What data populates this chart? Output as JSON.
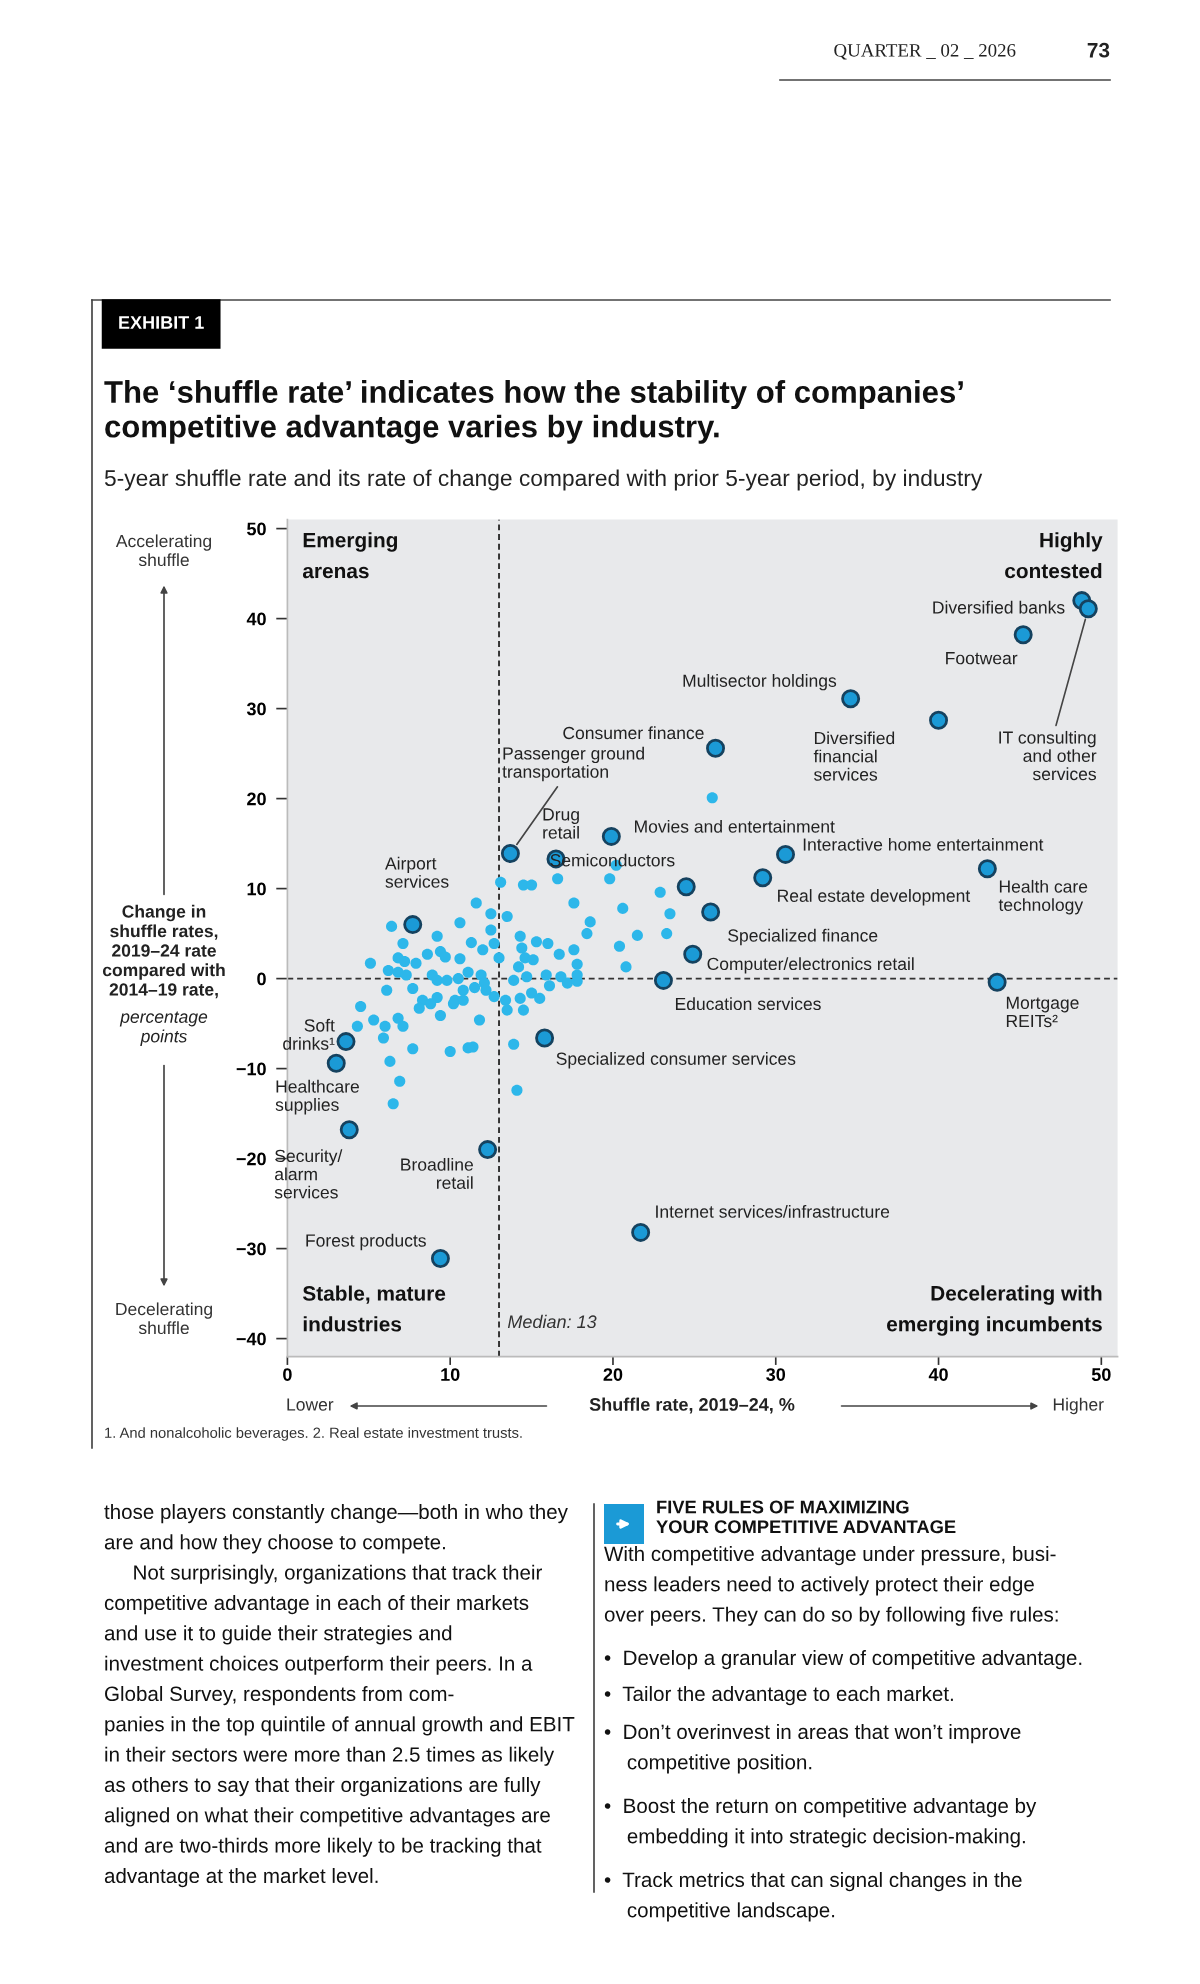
{
  "chart_data": {
    "type": "scatter",
    "title": "The ‘shuffle rate’ indicates how the stability of companies’\ncompetitive advantage varies by industry.",
    "subtitle": "5-year shuffle rate and its rate of change compared with prior 5-year period, by industry",
    "xlabel": "Shuffle rate, 2019–24, %",
    "ylabel": "Change in\nshuffle rates,\n2019–24 rate\ncompared with\n2014–19 rate,\npercentage\npoints",
    "xlim": [
      0,
      51
    ],
    "ylim": [
      -42,
      51
    ],
    "xticks": [
      0,
      10,
      20,
      30,
      40,
      50
    ],
    "yticks": [
      {
        "value": -40,
        "label": "−40"
      },
      {
        "value": -30,
        "label": "−30"
      },
      {
        "value": -20,
        "label": "−20"
      },
      {
        "value": -10,
        "label": "−10"
      },
      0,
      10,
      20,
      30,
      40,
      50
    ],
    "grid": false,
    "legend": false,
    "marker": "circle",
    "ref_lines": [
      {
        "axis": "x",
        "value": 13,
        "label": "Median: 13",
        "line_style": "dashed",
        "color": "#333333"
      },
      {
        "axis": "y",
        "value": 0,
        "line_style": "dashed",
        "color": "#333333"
      }
    ],
    "series": [
      {
        "color": "#1b9ad6",
        "x": [
          48.8,
          49.2,
          45.2,
          34.6,
          40.0,
          26.3,
          13.7,
          16.5,
          19.9,
          24.5,
          30.6,
          29.2,
          43.0,
          26.0,
          24.9,
          23.1,
          43.6,
          7.7,
          3.6,
          3.0,
          15.8,
          3.8,
          12.3,
          21.7,
          9.4
        ],
        "values": [
          42.0,
          41.1,
          38.2,
          31.1,
          28.7,
          25.6,
          13.9,
          13.3,
          15.8,
          10.2,
          13.8,
          11.2,
          12.2,
          7.4,
          2.7,
          -0.2,
          -0.4,
          6.0,
          -7.0,
          -9.4,
          -6.6,
          -16.8,
          -19.0,
          -28.2,
          -31.1
        ]
      },
      {
        "color": "#2db7ea",
        "x": [
          16.6,
          13.1,
          14.5,
          15.0,
          11.6,
          12.5,
          13.5,
          17.6,
          18.6,
          18.4,
          6.4,
          7.1,
          9.2,
          10.6,
          11.3,
          12.5,
          12.7,
          14.3,
          15.3,
          14.4,
          16.0,
          17.6,
          5.1,
          6.2,
          6.8,
          7.2,
          7.9,
          8.6,
          9.4,
          9.7,
          10.6,
          12.0,
          13.0,
          14.6,
          15.1,
          14.2,
          16.7,
          17.8,
          6.8,
          7.3,
          8.9,
          9.2,
          9.8,
          10.5,
          11.1,
          11.9,
          12.1,
          11.5,
          10.8,
          10.3,
          12.2,
          13.9,
          14.7,
          15.0,
          15.9,
          16.1,
          16.8,
          17.2,
          17.8,
          17.8,
          6.1,
          7.7,
          8.3,
          9.2,
          10.8,
          12.7,
          13.4,
          14.3,
          15.5,
          4.5,
          5.3,
          6.0,
          6.8,
          8.1,
          8.8,
          9.4,
          10.2,
          13.5,
          14.5,
          11.8,
          4.3,
          7.1,
          5.9,
          7.7,
          10.0,
          11.1,
          11.4,
          13.9,
          6.3,
          6.9,
          6.5,
          14.1,
          20.2,
          19.8,
          22.9,
          20.6,
          23.5,
          21.5,
          23.3,
          20.4,
          20.8,
          26.1
        ],
        "values": [
          11.1,
          10.7,
          10.4,
          10.4,
          8.4,
          7.2,
          6.9,
          8.4,
          6.3,
          5.0,
          5.8,
          3.9,
          4.7,
          6.2,
          4.0,
          5.4,
          3.9,
          4.7,
          4.1,
          3.4,
          3.9,
          3.2,
          1.7,
          0.9,
          2.3,
          1.9,
          1.7,
          2.7,
          3.0,
          2.4,
          2.2,
          3.2,
          2.3,
          2.3,
          2.1,
          1.3,
          2.7,
          1.6,
          0.7,
          0.4,
          0.4,
          -0.2,
          -0.2,
          0.0,
          0.7,
          0.4,
          -0.5,
          -1.0,
          -1.3,
          -2.4,
          -1.3,
          -0.2,
          0.2,
          -1.6,
          0.4,
          -0.8,
          0.2,
          -0.5,
          -0.3,
          0.4,
          -1.3,
          -1.1,
          -2.4,
          -2.1,
          -2.4,
          -2.0,
          -2.4,
          -2.2,
          -2.2,
          -3.1,
          -4.6,
          -5.3,
          -4.4,
          -3.3,
          -2.8,
          -4.1,
          -2.8,
          -3.5,
          -3.5,
          -4.6,
          -5.3,
          -5.3,
          -6.6,
          -7.8,
          -8.1,
          -7.7,
          -7.6,
          -7.3,
          -9.2,
          -11.4,
          -13.9,
          -12.4,
          12.6,
          11.1,
          9.6,
          7.8,
          7.2,
          4.8,
          5.0,
          3.6,
          1.3,
          20.1
        ]
      }
    ],
    "annotations": [
      {
        "text": "Diversified banks",
        "x": 48.8,
        "y": 42.0
      },
      {
        "text": "IT consulting\nand other\nservices",
        "x": 49.2,
        "y": 41.1
      },
      {
        "text": "Footwear",
        "x": 45.2,
        "y": 38.2
      },
      {
        "text": "Multisector holdings",
        "x": 34.6,
        "y": 31.1
      },
      {
        "text": "Diversified\nfinancial\nservices",
        "x": 40.0,
        "y": 28.7
      },
      {
        "text": "Consumer finance",
        "x": 26.3,
        "y": 25.6
      },
      {
        "text": "Passenger ground\ntransportation",
        "x": 13.7,
        "y": 13.9
      },
      {
        "text": "Drug\nretail",
        "x": 16.5,
        "y": 13.3
      },
      {
        "text": "Movies and entertainment",
        "x": 19.9,
        "y": 15.8
      },
      {
        "text": "Semiconductors",
        "x": 24.5,
        "y": 10.2
      },
      {
        "text": "Interactive home entertainment",
        "x": 30.6,
        "y": 13.8
      },
      {
        "text": "Real estate development",
        "x": 29.2,
        "y": 11.2
      },
      {
        "text": "Health care\ntechnology",
        "x": 43.0,
        "y": 12.2
      },
      {
        "text": "Specialized finance",
        "x": 26.0,
        "y": 7.4
      },
      {
        "text": "Computer/electronics retail",
        "x": 24.9,
        "y": 2.7
      },
      {
        "text": "Education services",
        "x": 23.1,
        "y": -0.2
      },
      {
        "text": "Mortgage\nREITs²",
        "x": 43.6,
        "y": -0.4
      },
      {
        "text": "Airport\nservices",
        "x": 7.7,
        "y": 6.0
      },
      {
        "text": "Soft\ndrinks¹",
        "x": 3.6,
        "y": -7.0
      },
      {
        "text": "Healthcare\nsupplies",
        "x": 3.0,
        "y": -9.4
      },
      {
        "text": "Specialized consumer services",
        "x": 15.8,
        "y": -6.6
      },
      {
        "text": "Security/\nalarm\nservices",
        "x": 3.8,
        "y": -16.8
      },
      {
        "text": "Broadline\nretail",
        "x": 12.3,
        "y": -19.0
      },
      {
        "text": "Internet services/infrastructure",
        "x": 21.7,
        "y": -28.2
      },
      {
        "text": "Forest products",
        "x": 9.4,
        "y": -31.1
      },
      "QUARTER _ 02 _ 2026",
      "73",
      "EXHIBIT 1",
      "Accelerating\nshuffle",
      "Decelerating\nshuffle",
      "Emerging\narenas",
      "Highly\ncontested",
      "Stable, mature\nindustries",
      "Decelerating with\nemerging incumbents",
      "Lower",
      "Higher",
      "1. And nonalcoholic beverages. 2. Real estate investment trusts.",
      "those players constantly change—both in who they\nare and how they choose to compete.\n     Not surprisingly, organizations that track their\ncompetitive advantage in each of their markets\nand use it to guide their strategies and\ninvestment choices outperform their peers. In a\nGlobal Survey, respondents from com-\npanies in the top quintile of annual growth and EBIT\nin their sectors were more than 2.5 times as likely\nas others to say that their organizations are fully\naligned on what their competitive advantages are\nand are two-thirds more likely to be tracking that\nadvantage at the market level.",
      "FIVE RULES OF MAXIMIZING\nYOUR COMPETITIVE ADVANTAGE",
      "With competitive advantage under pressure, busi-\nness leaders need to actively protect their edge\nover peers. They can do so by following five rules:",
      "•  Develop a granular view of competitive advantage.",
      "•  Tailor the advantage to each market.",
      "•  Don’t overinvest in areas that won’t improve\n    competitive position.",
      "•  Boost the return on competitive advantage by\n    embedding it into strategic decision-making.",
      "•  Track metrics that can signal changes in the\n    competitive landscape."
    ]
  }
}
